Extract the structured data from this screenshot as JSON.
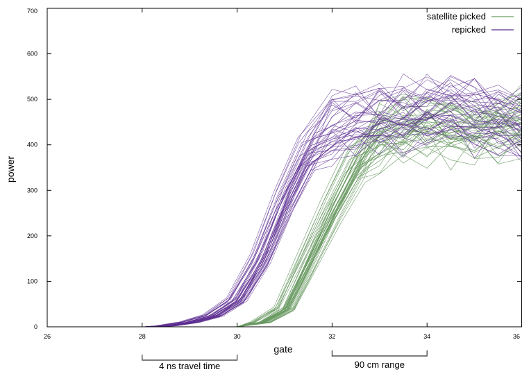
{
  "chart_data": {
    "type": "line",
    "xlabel": "gate",
    "ylabel": "power",
    "xlim": [
      26,
      36
    ],
    "ylim": [
      0,
      700
    ],
    "x_ticks": [
      {
        "value": 26,
        "label": "26"
      },
      {
        "value": 28,
        "label": "28"
      },
      {
        "value": 30,
        "label": "30"
      },
      {
        "value": 32,
        "label": "32"
      },
      {
        "value": 34,
        "label": "34"
      },
      {
        "value": 36,
        "label": "36"
      }
    ],
    "y_ticks": [
      {
        "value": 0,
        "label": "0"
      },
      {
        "value": 100,
        "label": "100"
      },
      {
        "value": 200,
        "label": "200"
      },
      {
        "value": 300,
        "label": "300"
      },
      {
        "value": 400,
        "label": "400"
      },
      {
        "value": 500,
        "label": "500"
      },
      {
        "value": 600,
        "label": "600"
      },
      {
        "value": 700,
        "label": "700"
      }
    ],
    "grid": false,
    "legend_position": "top-right",
    "series": [
      {
        "name": "satellite picked",
        "color": "#6a9a63",
        "trace_count": 40,
        "typical_x": [
          28,
          28.5,
          29,
          29.5,
          30,
          30.5,
          31,
          31.5,
          32,
          32.5,
          33,
          33.5,
          34,
          34.5,
          35,
          35.5,
          36
        ],
        "typical_y": [
          0,
          0,
          0,
          0,
          0,
          10,
          40,
          150,
          260,
          360,
          420,
          440,
          445,
          440,
          435,
          440,
          450
        ]
      },
      {
        "name": "repicked",
        "color": "#5c2d91",
        "trace_count": 40,
        "typical_x": [
          28,
          28.5,
          29,
          29.5,
          30,
          30.5,
          31,
          31.5,
          32,
          32.5,
          33,
          33.5,
          34,
          34.5,
          35,
          35.5,
          36
        ],
        "typical_y": [
          0,
          2,
          10,
          25,
          60,
          150,
          280,
          390,
          440,
          460,
          465,
          470,
          480,
          485,
          470,
          460,
          440
        ]
      }
    ],
    "annotations": [
      {
        "text": "4 ns travel time",
        "x_start": 28,
        "x_end": 30
      },
      {
        "text": "90 cm range",
        "x_start": 32,
        "x_end": 34
      }
    ]
  }
}
